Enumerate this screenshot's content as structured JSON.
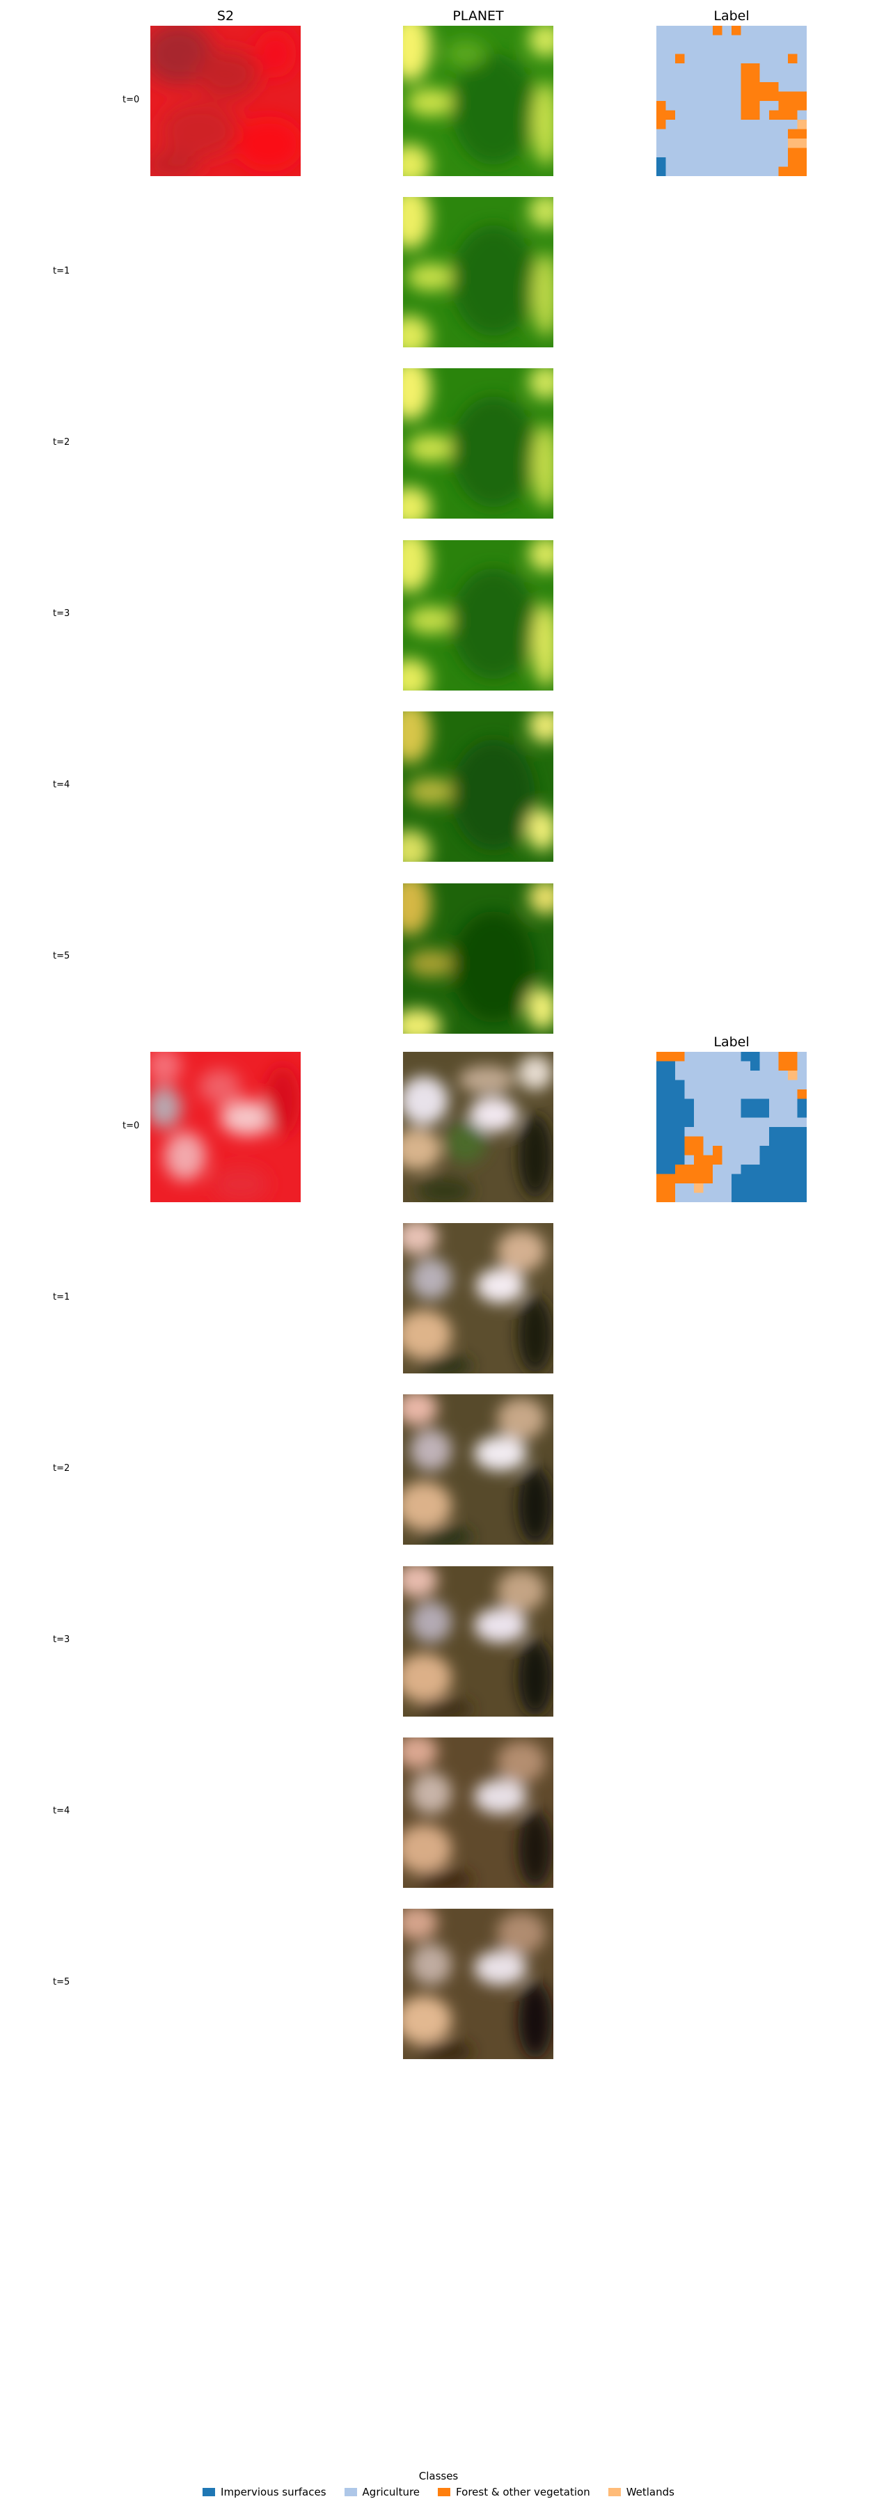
{
  "columns": {
    "s2": "S2",
    "planet": "PLANET",
    "label": "Label"
  },
  "times": [
    "t=0",
    "t=1",
    "t=2",
    "t=3",
    "t=4",
    "t=5"
  ],
  "legend": {
    "title": "Classes",
    "items": [
      {
        "label": "Impervious surfaces",
        "color": "#1f77b4"
      },
      {
        "label": "Agriculture",
        "color": "#aec7e8"
      },
      {
        "label": "Forest & other vegetation",
        "color": "#ff7f0e"
      },
      {
        "label": "Wetlands",
        "color": "#ffbb78"
      }
    ]
  },
  "colors": {
    "s2_red": "#e8141c",
    "s2_dark": "#b8262b",
    "planet_green_dark": "#1f6e08",
    "planet_green": "#3b9a12",
    "planet_yellow": "#f7f46a",
    "planet_brown": "#5b4d2c",
    "planet_tan": "#d8b48c",
    "planet_pink": "#e8d6e2"
  }
}
